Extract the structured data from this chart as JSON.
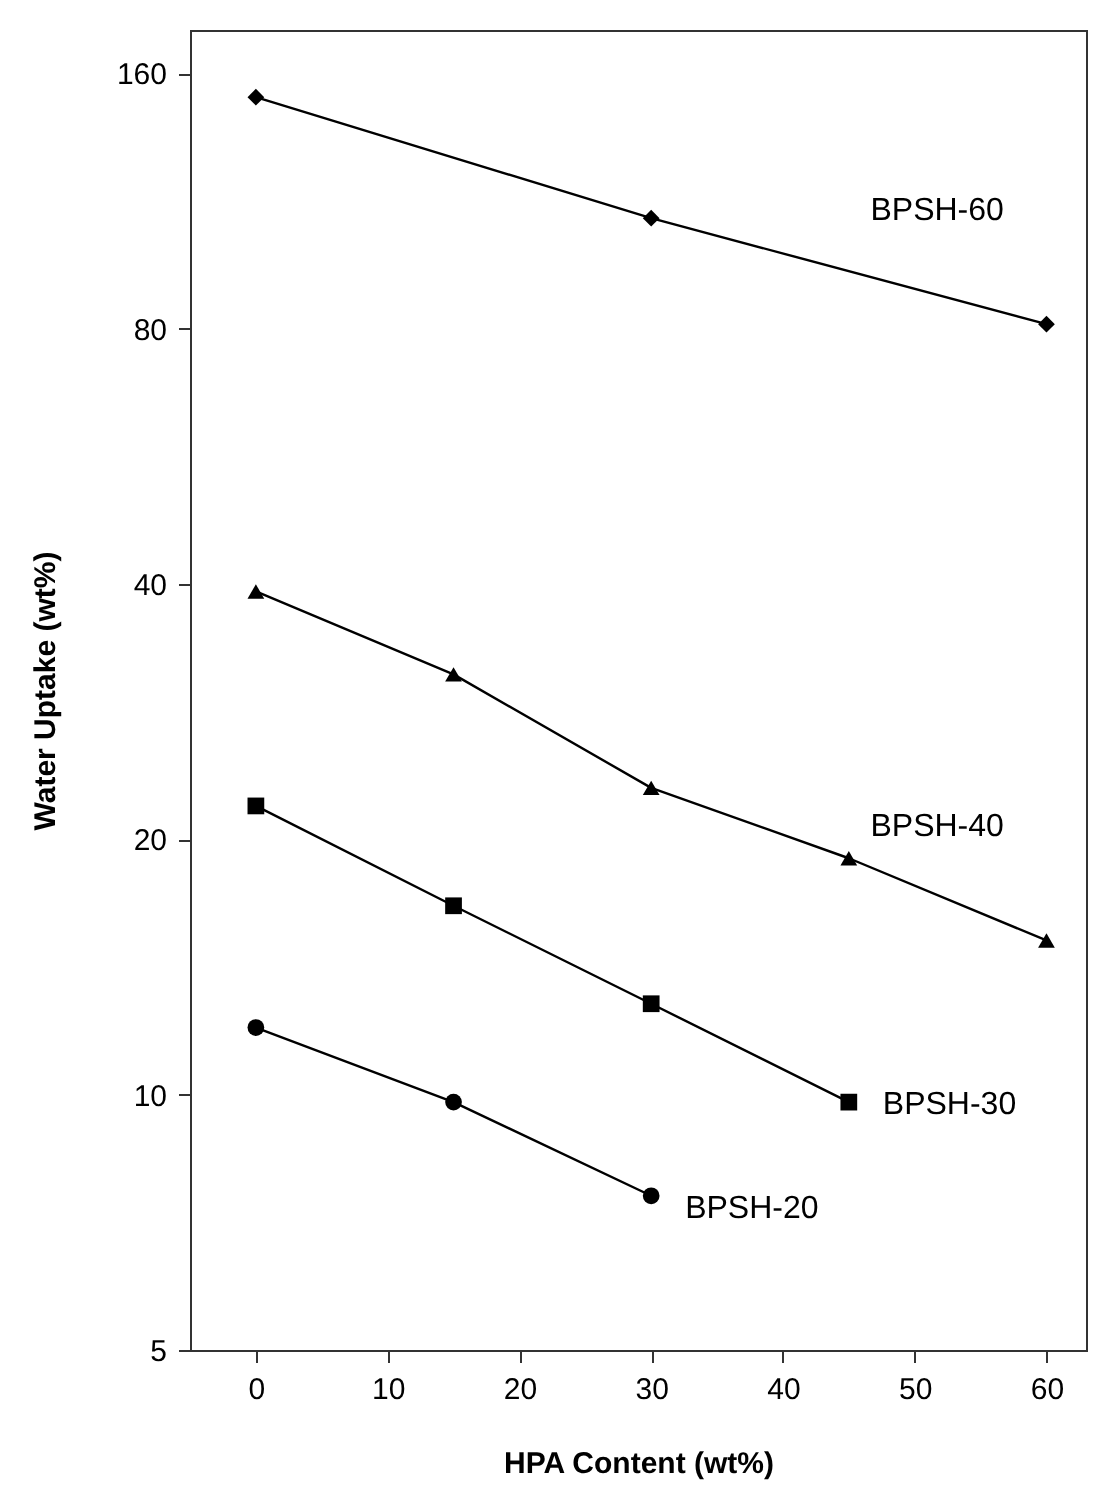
{
  "chart_data": {
    "type": "line",
    "xlabel": "HPA Content (wt%)",
    "ylabel": "Water Uptake (wt%)",
    "xlim": [
      -5,
      63
    ],
    "xticks": [
      0,
      10,
      20,
      30,
      40,
      50,
      60
    ],
    "ylim": [
      5,
      180
    ],
    "yticks": [
      5,
      10,
      20,
      40,
      80,
      160
    ],
    "log": "y",
    "grid": false,
    "series": [
      {
        "name": "BPSH-60",
        "color": "#000000",
        "marker": "diamond",
        "x": [
          0,
          30,
          60
        ],
        "values": [
          150,
          108,
          81
        ]
      },
      {
        "name": "BPSH-40",
        "color": "#000000",
        "marker": "triangle",
        "x": [
          0,
          15,
          30,
          45,
          60
        ],
        "values": [
          39.2,
          31.3,
          23,
          19,
          15.2
        ]
      },
      {
        "name": "BPSH-30",
        "color": "#000000",
        "marker": "square",
        "x": [
          0,
          15,
          30,
          45
        ],
        "values": [
          21.9,
          16.7,
          12.8,
          9.8
        ]
      },
      {
        "name": "BPSH-20",
        "color": "#000000",
        "marker": "circle",
        "x": [
          0,
          15,
          30
        ],
        "values": [
          12,
          9.8,
          7.6
        ]
      }
    ]
  }
}
